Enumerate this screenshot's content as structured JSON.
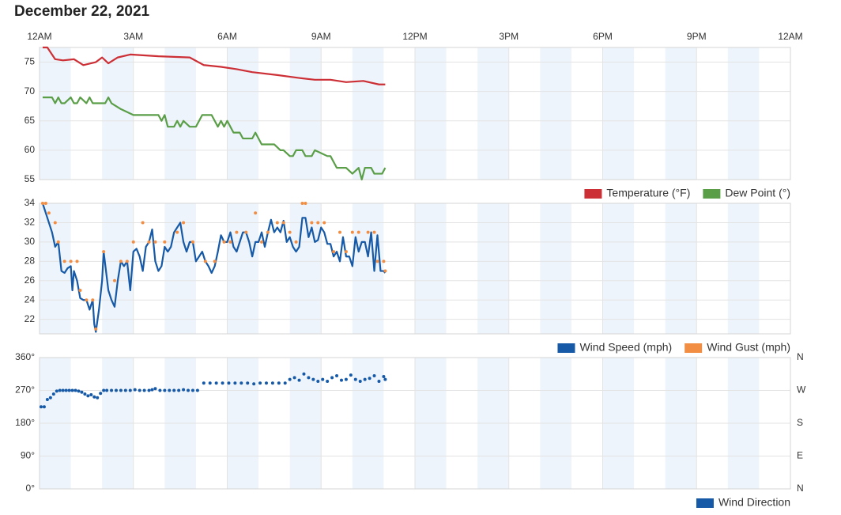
{
  "title": "December 22, 2021",
  "chart_data": [
    {
      "type": "line",
      "xlim": [
        0,
        24
      ],
      "xticks": [
        {
          "value": 0,
          "label": "12AM"
        },
        {
          "value": 3,
          "label": "3AM"
        },
        {
          "value": 6,
          "label": "6AM"
        },
        {
          "value": 9,
          "label": "9AM"
        },
        {
          "value": 12,
          "label": "12PM"
        },
        {
          "value": 15,
          "label": "3PM"
        },
        {
          "value": 18,
          "label": "6PM"
        },
        {
          "value": 21,
          "label": "9PM"
        },
        {
          "value": 24,
          "label": "12AM"
        }
      ],
      "ylim": [
        55,
        77.5
      ],
      "yticks": [
        55,
        60,
        65,
        70,
        75
      ],
      "grid": true,
      "series": [
        {
          "name": "Temperature (°F)",
          "color": "#cc2f35",
          "x": [
            0.1,
            0.25,
            0.5,
            0.75,
            1.1,
            1.4,
            1.8,
            2.0,
            2.2,
            2.5,
            2.9,
            3.8,
            4.8,
            5.25,
            5.8,
            6.3,
            6.8,
            7.6,
            8.3,
            8.8,
            9.3,
            9.8,
            10.35,
            10.85,
            11.05
          ],
          "values": [
            77.5,
            77.5,
            75.5,
            75.3,
            75.5,
            74.5,
            75,
            75.8,
            74.8,
            75.8,
            76.3,
            76,
            75.8,
            74.5,
            74.2,
            73.8,
            73.3,
            72.8,
            72.3,
            72,
            72,
            71.6,
            71.8,
            71.2,
            71.2
          ]
        },
        {
          "name": "Dew Point (°)",
          "color": "#5a9e48",
          "x": [
            0.1,
            0.4,
            0.5,
            0.6,
            0.7,
            0.8,
            1.0,
            1.1,
            1.2,
            1.3,
            1.5,
            1.6,
            1.7,
            2.1,
            2.2,
            2.3,
            2.6,
            3.0,
            3.8,
            3.9,
            4.0,
            4.1,
            4.3,
            4.4,
            4.5,
            4.6,
            4.8,
            5.0,
            5.2,
            5.5,
            5.6,
            5.7,
            5.8,
            5.9,
            6.0,
            6.1,
            6.2,
            6.4,
            6.5,
            6.8,
            6.9,
            7.1,
            7.5,
            7.7,
            7.8,
            8.0,
            8.1,
            8.2,
            8.4,
            8.5,
            8.7,
            8.8,
            9.2,
            9.3,
            9.5,
            9.8,
            10.0,
            10.2,
            10.3,
            10.4,
            10.6,
            10.7,
            10.95,
            11.05
          ],
          "values": [
            69,
            69,
            68,
            69,
            68,
            68,
            69,
            68,
            68,
            69,
            68,
            69,
            68,
            68,
            69,
            68,
            67,
            66,
            66,
            65,
            66,
            64,
            64,
            65,
            64,
            65,
            64,
            64,
            66,
            66,
            65,
            64,
            65,
            64,
            65,
            64,
            63,
            63,
            62,
            62,
            63,
            61,
            61,
            60,
            60,
            59,
            59,
            60,
            60,
            59,
            59,
            60,
            59,
            59,
            57,
            57,
            56,
            57,
            55,
            57,
            57,
            56,
            56,
            57
          ]
        }
      ]
    },
    {
      "type": "line",
      "xlim": [
        0,
        24
      ],
      "ylim": [
        20.5,
        34
      ],
      "yticks": [
        22,
        24,
        26,
        28,
        30,
        32,
        34
      ],
      "grid": true,
      "series": [
        {
          "name": "Wind Speed (mph)",
          "color": "#1559a7",
          "x": [
            0.1,
            0.3,
            0.4,
            0.5,
            0.6,
            0.7,
            0.8,
            0.9,
            1.0,
            1.05,
            1.1,
            1.2,
            1.3,
            1.4,
            1.5,
            1.6,
            1.7,
            1.75,
            1.8,
            1.9,
            2.0,
            2.05,
            2.2,
            2.3,
            2.4,
            2.5,
            2.6,
            2.7,
            2.8,
            2.9,
            3.0,
            3.1,
            3.2,
            3.3,
            3.4,
            3.5,
            3.6,
            3.7,
            3.8,
            3.9,
            4.0,
            4.1,
            4.2,
            4.3,
            4.4,
            4.5,
            4.6,
            4.7,
            4.8,
            4.9,
            5.0,
            5.1,
            5.2,
            5.3,
            5.4,
            5.5,
            5.6,
            5.7,
            5.8,
            5.9,
            6.0,
            6.1,
            6.2,
            6.3,
            6.4,
            6.5,
            6.6,
            6.7,
            6.8,
            6.9,
            7.0,
            7.1,
            7.2,
            7.3,
            7.4,
            7.5,
            7.6,
            7.7,
            7.8,
            7.9,
            8.0,
            8.1,
            8.2,
            8.3,
            8.4,
            8.5,
            8.6,
            8.7,
            8.8,
            8.9,
            9.0,
            9.1,
            9.2,
            9.3,
            9.4,
            9.5,
            9.6,
            9.7,
            9.8,
            9.9,
            10.0,
            10.1,
            10.2,
            10.3,
            10.4,
            10.5,
            10.6,
            10.7,
            10.8,
            10.9,
            11.0,
            11.05
          ],
          "values": [
            34,
            32,
            31,
            29.5,
            30,
            27,
            26.8,
            27.3,
            27.5,
            25,
            27,
            26,
            24.2,
            24,
            24,
            23,
            24,
            21.5,
            20.7,
            23,
            26,
            29,
            25,
            24,
            23.3,
            26,
            28,
            27.5,
            28,
            25,
            29,
            29.3,
            28.5,
            27,
            29.5,
            30,
            31.3,
            28,
            27,
            27.5,
            29.5,
            29,
            29.5,
            31,
            31.5,
            32,
            30,
            29,
            30,
            30,
            28,
            28.5,
            29,
            28,
            27.5,
            26.8,
            27.5,
            29,
            30.7,
            30,
            30,
            31,
            29.5,
            29,
            30,
            31,
            31,
            30,
            28.5,
            30,
            30,
            31,
            29.5,
            31,
            32.3,
            31,
            31.5,
            31,
            32.2,
            30,
            30.5,
            29.5,
            29,
            29.5,
            32.5,
            32.5,
            30.5,
            31.5,
            30,
            30.2,
            31.5,
            31,
            29.8,
            29.8,
            28.5,
            29,
            28,
            30.5,
            28.5,
            28.5,
            27.5,
            30.5,
            29,
            30,
            30,
            28.5,
            31,
            27,
            30.7,
            27,
            27,
            26.8
          ]
        },
        {
          "name": "Wind Gust (mph)",
          "color": "#f28e43",
          "type": "scatter",
          "x": [
            0.1,
            0.2,
            0.3,
            0.5,
            0.6,
            0.8,
            1.0,
            1.2,
            1.3,
            1.5,
            1.7,
            1.8,
            2.05,
            2.4,
            2.6,
            2.8,
            3.0,
            3.3,
            3.5,
            3.7,
            4.0,
            4.4,
            4.6,
            4.9,
            5.3,
            5.6,
            5.9,
            6.1,
            6.3,
            6.6,
            6.9,
            7.1,
            7.3,
            7.6,
            7.8,
            8.0,
            8.2,
            8.4,
            8.5,
            8.7,
            8.9,
            9.1,
            9.4,
            9.6,
            9.8,
            10.0,
            10.2,
            10.5,
            10.7,
            10.8,
            11.0,
            11.05
          ],
          "values": [
            34,
            34,
            33,
            32,
            30,
            28,
            28,
            28,
            25,
            24,
            24,
            21,
            29,
            26,
            28,
            28,
            30,
            32,
            30,
            30,
            30,
            31,
            32,
            30,
            28,
            28,
            30,
            30,
            31,
            31,
            33,
            30,
            31,
            32,
            32,
            31,
            30,
            34,
            34,
            32,
            32,
            32,
            29,
            31,
            29,
            31,
            31,
            31,
            31,
            28,
            28,
            27
          ]
        }
      ]
    },
    {
      "type": "scatter",
      "xlim": [
        0,
        24
      ],
      "ylim": [
        0,
        360
      ],
      "yticks": [
        {
          "value": 0,
          "label": "0°"
        },
        {
          "value": 90,
          "label": "90°"
        },
        {
          "value": 180,
          "label": "180°"
        },
        {
          "value": 270,
          "label": "270°"
        },
        {
          "value": 360,
          "label": "360°"
        }
      ],
      "y2lim": [
        0,
        360
      ],
      "y2ticks": [
        {
          "value": 0,
          "label": "N"
        },
        {
          "value": 90,
          "label": "E"
        },
        {
          "value": 180,
          "label": "S"
        },
        {
          "value": 270,
          "label": "W"
        },
        {
          "value": 360,
          "label": "N"
        }
      ],
      "grid": true,
      "series": [
        {
          "name": "Wind Direction",
          "color": "#1559a7",
          "x": [
            0.05,
            0.15,
            0.25,
            0.35,
            0.45,
            0.55,
            0.65,
            0.75,
            0.85,
            0.95,
            1.05,
            1.15,
            1.25,
            1.35,
            1.45,
            1.55,
            1.65,
            1.75,
            1.85,
            1.95,
            2.05,
            2.15,
            2.3,
            2.45,
            2.6,
            2.75,
            2.9,
            3.05,
            3.2,
            3.35,
            3.5,
            3.6,
            3.7,
            3.85,
            4.0,
            4.15,
            4.3,
            4.45,
            4.6,
            4.75,
            4.9,
            5.05,
            5.25,
            5.45,
            5.65,
            5.85,
            6.05,
            6.25,
            6.45,
            6.65,
            6.85,
            7.05,
            7.25,
            7.45,
            7.65,
            7.85,
            8.0,
            8.15,
            8.3,
            8.45,
            8.6,
            8.75,
            8.9,
            9.05,
            9.2,
            9.35,
            9.5,
            9.65,
            9.8,
            9.95,
            10.1,
            10.25,
            10.4,
            10.55,
            10.7,
            10.85,
            11.0,
            11.05
          ],
          "values": [
            225,
            225,
            245,
            250,
            260,
            268,
            270,
            270,
            270,
            270,
            270,
            270,
            268,
            265,
            260,
            255,
            258,
            252,
            250,
            262,
            270,
            270,
            270,
            270,
            270,
            270,
            270,
            272,
            270,
            270,
            270,
            272,
            275,
            270,
            270,
            270,
            270,
            270,
            272,
            270,
            270,
            270,
            290,
            290,
            290,
            290,
            290,
            290,
            290,
            290,
            288,
            290,
            290,
            290,
            290,
            290,
            300,
            305,
            298,
            315,
            305,
            300,
            295,
            300,
            295,
            305,
            310,
            298,
            300,
            312,
            300,
            295,
            300,
            303,
            310,
            295,
            308,
            300
          ]
        }
      ]
    }
  ]
}
